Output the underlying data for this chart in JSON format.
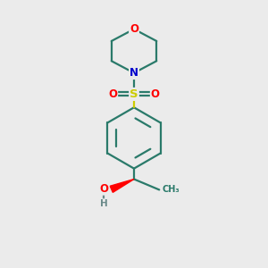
{
  "bg_color": "#ebebeb",
  "atom_colors": {
    "O": "#ff0000",
    "N": "#0000cc",
    "S": "#cccc00",
    "C": "#2a7a6a",
    "H": "#6a8a8a"
  },
  "bond_color": "#2a7a6a",
  "line_width": 1.6,
  "font_size_atoms": 8.5
}
